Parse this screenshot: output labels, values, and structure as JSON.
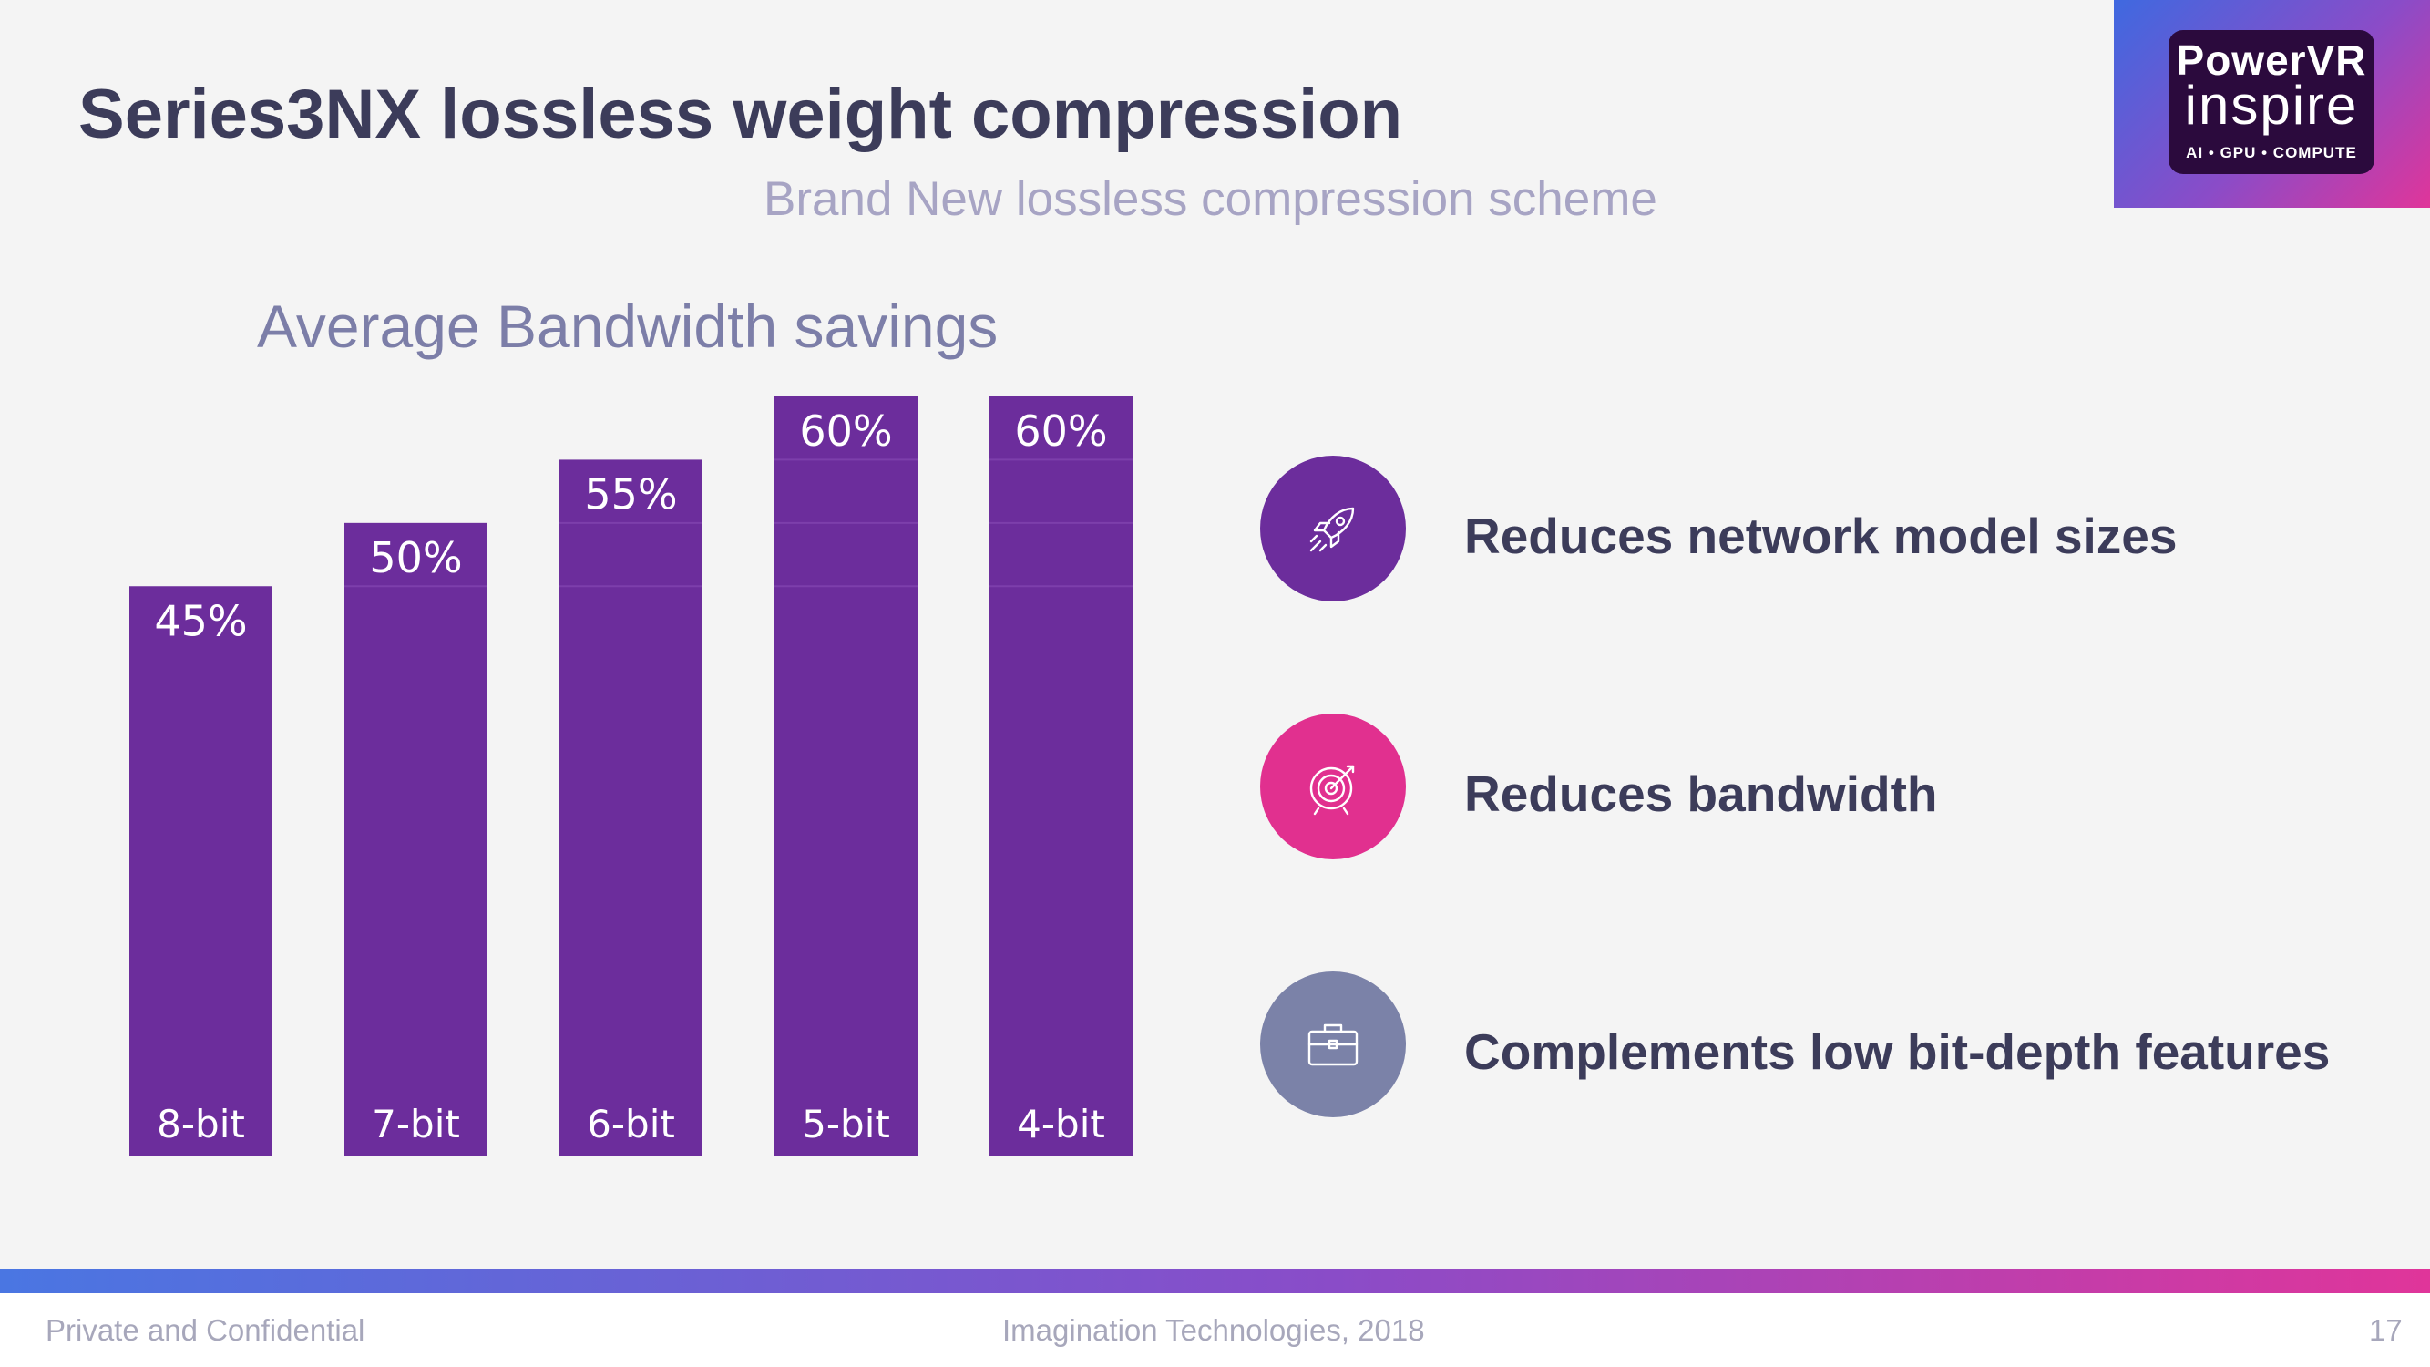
{
  "slide": {
    "title": "Series3NX lossless weight compression",
    "subtitle": "Brand New lossless compression scheme"
  },
  "logo": {
    "line1": "PowerVR",
    "line2": "inspire",
    "line3": "AI • GPU • COMPUTE"
  },
  "chart_data": {
    "type": "bar",
    "title": "Average Bandwidth savings",
    "categories": [
      "8-bit",
      "7-bit",
      "6-bit",
      "5-bit",
      "4-bit"
    ],
    "values": [
      45,
      50,
      55,
      60,
      60
    ],
    "value_labels": [
      "45%",
      "50%",
      "55%",
      "60%",
      "60%"
    ],
    "xlabel": "",
    "ylabel": "",
    "ylim": [
      0,
      100
    ],
    "grid": false,
    "legend": "none",
    "bar_color": "#6c2d9c"
  },
  "features": [
    {
      "label": "Reduces network model sizes",
      "icon": "rocket-icon",
      "color": "#6c2d9c"
    },
    {
      "label": "Reduces bandwidth",
      "icon": "target-icon",
      "color": "#e1308f"
    },
    {
      "label": "Complements low bit-depth features",
      "icon": "briefcase-icon",
      "color": "#7b82a8"
    }
  ],
  "footer": {
    "left": "Private and Confidential",
    "center": "Imagination Technologies, 2018",
    "page": "17"
  }
}
